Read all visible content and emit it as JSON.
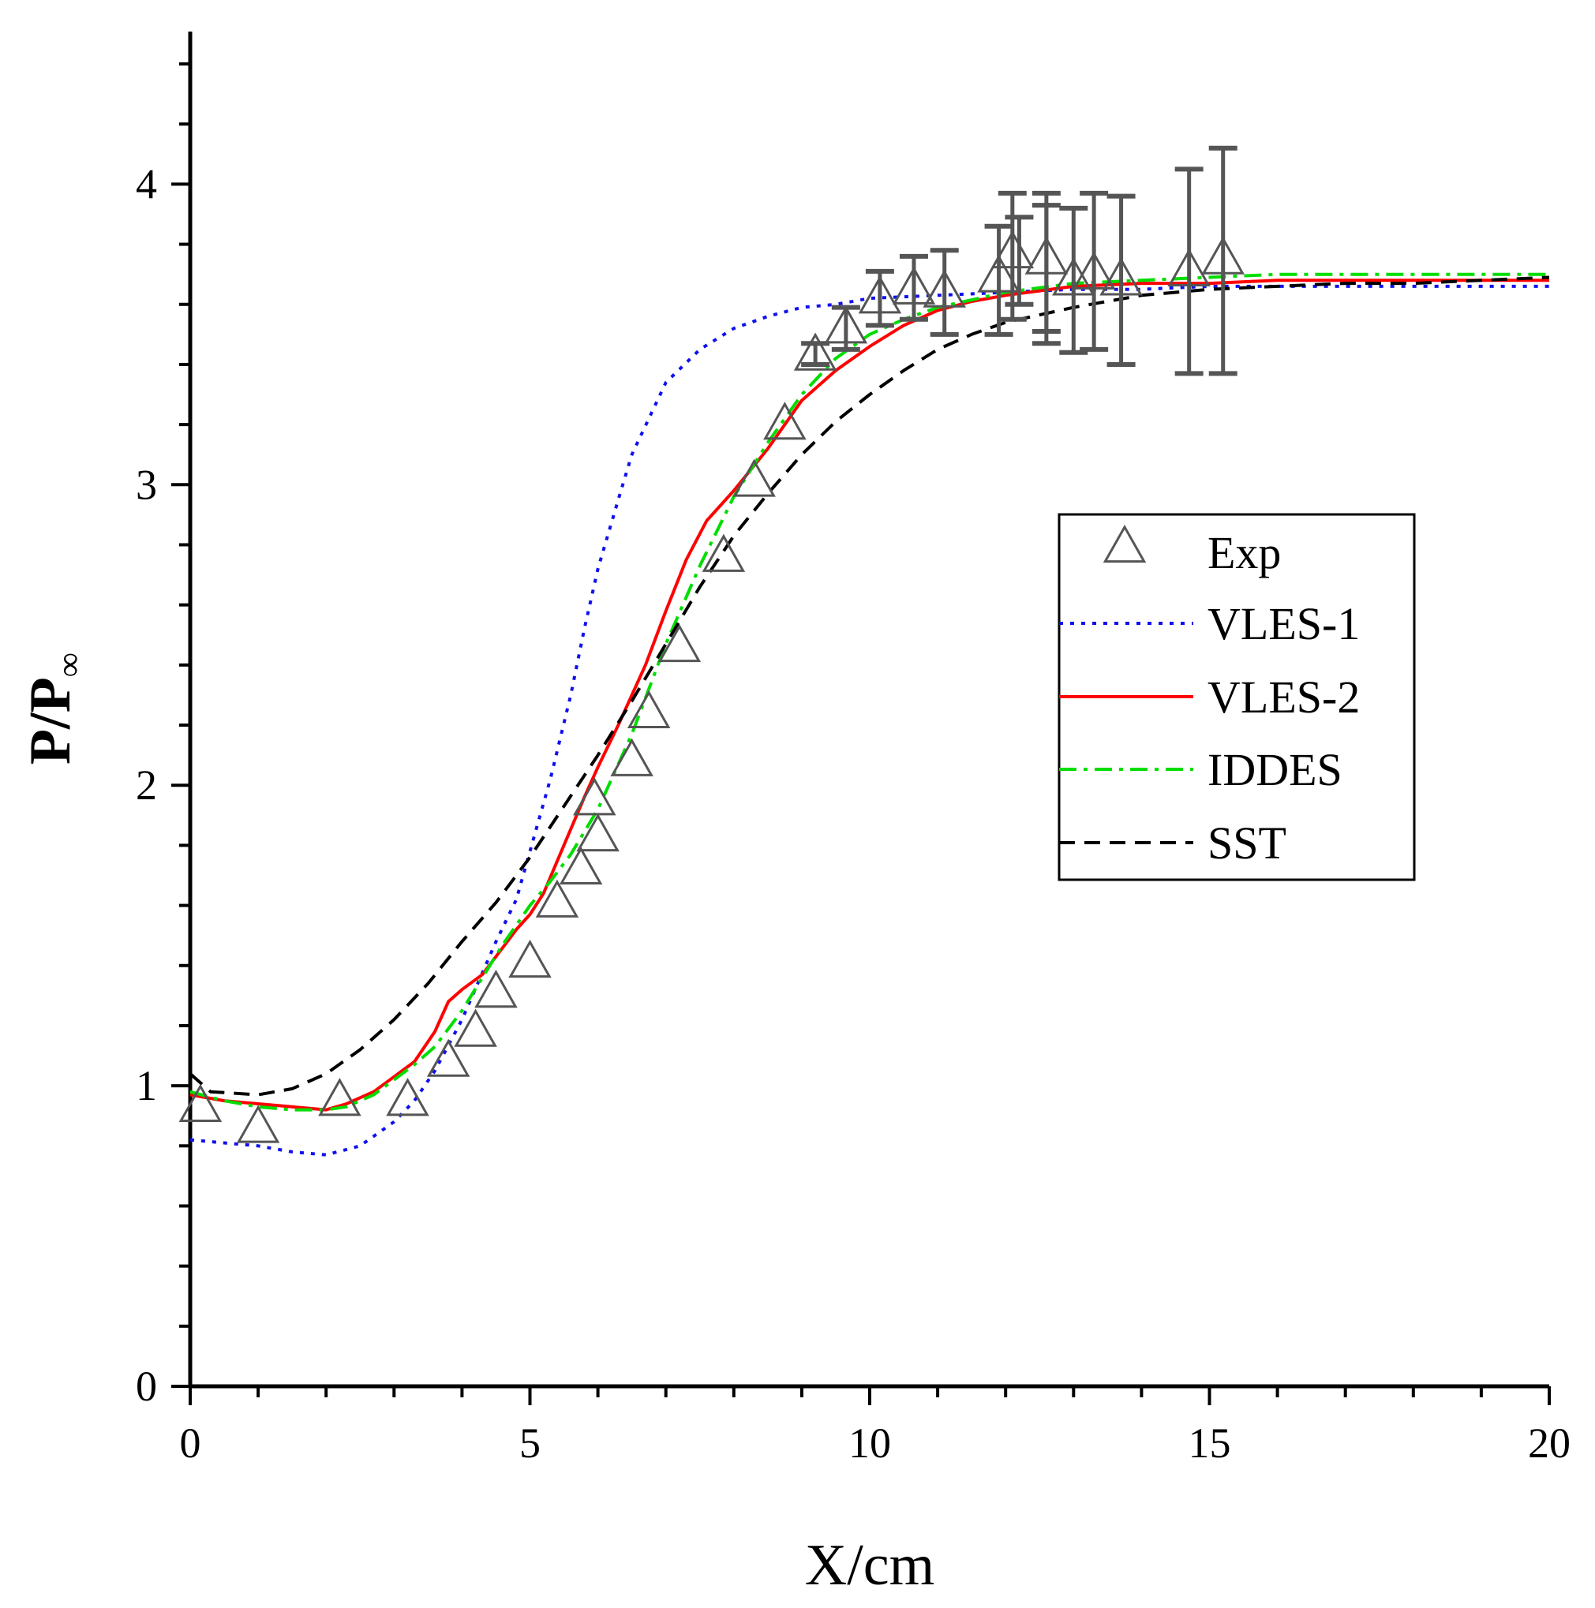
{
  "chart_data": {
    "type": "line",
    "title": "",
    "xlabel": "X/cm",
    "ylabel_main": "P/P",
    "ylabel_sub": "∞",
    "xlim": [
      0,
      20
    ],
    "ylim": [
      0,
      4.5
    ],
    "x_ticks": [
      0,
      5,
      10,
      15,
      20
    ],
    "x_tick_labels": [
      "0",
      "5",
      "10",
      "15",
      "20"
    ],
    "y_ticks": [
      0,
      1,
      2,
      3,
      4
    ],
    "y_tick_labels": [
      "0",
      "1",
      "2",
      "3",
      "4"
    ],
    "legend_position": "center-right",
    "series": [
      {
        "name": "Exp",
        "kind": "marker",
        "color": "#555555",
        "points": [
          [
            0.15,
            0.93
          ],
          [
            1.0,
            0.86
          ],
          [
            2.2,
            0.95
          ],
          [
            3.2,
            0.95
          ],
          [
            3.8,
            1.08
          ],
          [
            4.2,
            1.18
          ],
          [
            4.5,
            1.31
          ],
          [
            5.0,
            1.41
          ],
          [
            5.4,
            1.61
          ],
          [
            5.75,
            1.72
          ],
          [
            6.0,
            1.83
          ],
          [
            5.95,
            1.95
          ],
          [
            6.5,
            2.08
          ],
          [
            6.75,
            2.24
          ],
          [
            7.2,
            2.46
          ],
          [
            7.85,
            2.76
          ],
          [
            8.3,
            3.01
          ],
          [
            8.75,
            3.2
          ],
          [
            9.2,
            3.43
          ],
          [
            9.65,
            3.52
          ],
          [
            10.15,
            3.62
          ],
          [
            10.65,
            3.65
          ],
          [
            11.1,
            3.64
          ],
          [
            11.9,
            3.69
          ],
          [
            12.1,
            3.77
          ],
          [
            12.6,
            3.75
          ],
          [
            13.0,
            3.68
          ],
          [
            13.3,
            3.7
          ],
          [
            13.7,
            3.68
          ],
          [
            14.7,
            3.71
          ],
          [
            15.2,
            3.75
          ]
        ],
        "error_bars": [
          {
            "x": 9.2,
            "low": 3.4,
            "high": 3.47
          },
          {
            "x": 9.65,
            "low": 3.45,
            "high": 3.59
          },
          {
            "x": 10.15,
            "low": 3.53,
            "high": 3.71
          },
          {
            "x": 10.65,
            "low": 3.55,
            "high": 3.76
          },
          {
            "x": 11.1,
            "low": 3.5,
            "high": 3.78
          },
          {
            "x": 11.9,
            "low": 3.5,
            "high": 3.86
          },
          {
            "x": 12.1,
            "low": 3.55,
            "high": 3.97
          },
          {
            "x": 12.2,
            "low": 3.6,
            "high": 3.89
          },
          {
            "x": 12.6,
            "low": 3.47,
            "high": 3.97
          },
          {
            "x": 12.6,
            "low": 3.51,
            "high": 3.93
          },
          {
            "x": 13.0,
            "low": 3.44,
            "high": 3.92
          },
          {
            "x": 13.3,
            "low": 3.45,
            "high": 3.97
          },
          {
            "x": 13.7,
            "low": 3.4,
            "high": 3.96
          },
          {
            "x": 14.7,
            "low": 3.37,
            "high": 4.05
          },
          {
            "x": 15.2,
            "low": 3.37,
            "high": 4.12
          }
        ]
      },
      {
        "name": "VLES-1",
        "kind": "line",
        "style": "dotted",
        "color": "#1010ee",
        "x": [
          0,
          0.5,
          1,
          1.5,
          2,
          2.5,
          3,
          3.3,
          3.6,
          4.0,
          4.5,
          4.8,
          5.0,
          5.3,
          5.6,
          5.8,
          6.0,
          6.3,
          6.5,
          7.0,
          7.5,
          8.0,
          8.5,
          9.0,
          9.5,
          10,
          11,
          12,
          13,
          14,
          15,
          16,
          17,
          18,
          19,
          20
        ],
        "y": [
          0.82,
          0.81,
          0.8,
          0.78,
          0.77,
          0.8,
          0.88,
          0.95,
          1.05,
          1.22,
          1.48,
          1.62,
          1.78,
          2.02,
          2.3,
          2.52,
          2.72,
          2.95,
          3.1,
          3.34,
          3.45,
          3.52,
          3.56,
          3.59,
          3.6,
          3.62,
          3.63,
          3.64,
          3.65,
          3.65,
          3.66,
          3.66,
          3.66,
          3.66,
          3.66,
          3.66
        ]
      },
      {
        "name": "VLES-2",
        "kind": "line",
        "style": "solid",
        "color": "#ff0000",
        "x": [
          0,
          0.5,
          1,
          1.5,
          2,
          2.3,
          2.7,
          3.0,
          3.3,
          3.6,
          3.8,
          4.0,
          4.3,
          4.6,
          4.8,
          5.0,
          5.2,
          5.5,
          5.8,
          6.0,
          6.3,
          6.7,
          7.0,
          7.3,
          7.6,
          8.0,
          8.5,
          9.0,
          9.5,
          10,
          10.5,
          11,
          11.5,
          12,
          13,
          14,
          15,
          16,
          17,
          18,
          19,
          20
        ],
        "y": [
          0.97,
          0.95,
          0.94,
          0.93,
          0.92,
          0.94,
          0.98,
          1.03,
          1.08,
          1.18,
          1.28,
          1.32,
          1.37,
          1.46,
          1.52,
          1.57,
          1.64,
          1.8,
          1.96,
          2.06,
          2.2,
          2.4,
          2.58,
          2.75,
          2.88,
          2.98,
          3.12,
          3.28,
          3.38,
          3.46,
          3.53,
          3.58,
          3.61,
          3.63,
          3.66,
          3.67,
          3.67,
          3.68,
          3.68,
          3.68,
          3.68,
          3.68
        ]
      },
      {
        "name": "IDDES",
        "kind": "line",
        "style": "dashdot",
        "color": "#00dd00",
        "x": [
          0,
          0.5,
          1,
          1.5,
          2,
          2.3,
          2.7,
          3.0,
          3.3,
          3.6,
          4.0,
          4.3,
          4.6,
          5.0,
          5.3,
          5.6,
          6.0,
          6.5,
          7.0,
          7.5,
          8.0,
          8.5,
          9.0,
          9.5,
          10,
          10.5,
          11,
          12,
          13,
          14,
          15,
          16,
          17,
          18,
          19,
          20
        ],
        "y": [
          0.98,
          0.95,
          0.93,
          0.92,
          0.92,
          0.93,
          0.97,
          1.02,
          1.07,
          1.13,
          1.25,
          1.36,
          1.47,
          1.6,
          1.68,
          1.77,
          1.92,
          2.17,
          2.47,
          2.73,
          2.96,
          3.14,
          3.3,
          3.42,
          3.5,
          3.55,
          3.59,
          3.64,
          3.67,
          3.68,
          3.69,
          3.7,
          3.7,
          3.7,
          3.7,
          3.7
        ]
      },
      {
        "name": "SST",
        "kind": "line",
        "style": "dashed",
        "color": "#000000",
        "x": [
          0,
          0.3,
          1,
          1.5,
          2,
          2.5,
          3,
          3.5,
          4,
          4.5,
          5,
          5.5,
          6,
          6.5,
          7,
          7.5,
          8,
          8.5,
          9,
          9.5,
          10,
          10.5,
          11,
          11.5,
          12,
          13,
          14,
          15,
          16,
          17,
          18,
          19,
          20
        ],
        "y": [
          1.04,
          0.98,
          0.97,
          0.99,
          1.04,
          1.12,
          1.22,
          1.34,
          1.48,
          1.61,
          1.76,
          1.93,
          2.1,
          2.28,
          2.47,
          2.66,
          2.83,
          2.97,
          3.1,
          3.21,
          3.3,
          3.38,
          3.45,
          3.5,
          3.54,
          3.59,
          3.63,
          3.65,
          3.66,
          3.67,
          3.67,
          3.68,
          3.69
        ]
      }
    ]
  }
}
